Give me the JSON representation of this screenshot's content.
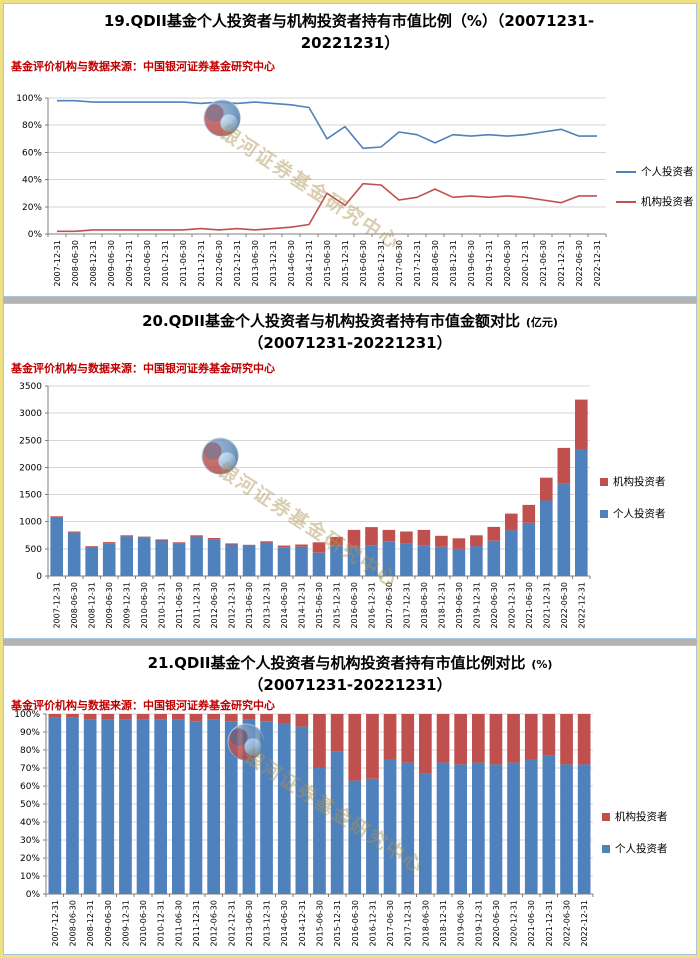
{
  "page": {
    "watermark": "银河证券基金研究中心",
    "source_note": "基金评价机构与数据来源：中国银河证券基金研究中心"
  },
  "colors": {
    "individual": "#4f81bd",
    "institutional": "#c0504d",
    "source_red": "#c00000"
  },
  "chart_data": [
    {
      "id": "chart19",
      "type": "line",
      "title_main": "19.QDII基金个人投资者与机构投资者持有市值比例（%）（20071231-",
      "title_unit": "",
      "title_line2": "20221231）",
      "ylim": [
        0,
        100
      ],
      "ytick_step": 20,
      "yformat": "percent",
      "grid": true,
      "legend_position": "right",
      "legend_order": [
        0,
        1
      ],
      "categories": [
        "2007-12-31",
        "2008-06-30",
        "2008-12-31",
        "2009-06-30",
        "2009-12-31",
        "2010-06-30",
        "2010-12-31",
        "2011-06-30",
        "2011-12-31",
        "2012-06-30",
        "2012-12-31",
        "2013-06-30",
        "2013-12-31",
        "2014-06-30",
        "2014-12-31",
        "2015-06-30",
        "2015-12-31",
        "2016-06-30",
        "2016-12-31",
        "2017-06-30",
        "2017-12-31",
        "2018-06-30",
        "2018-12-31",
        "2019-06-30",
        "2019-12-31",
        "2020-06-30",
        "2020-12-31",
        "2021-06-30",
        "2021-12-31",
        "2022-06-30",
        "2022-12-31"
      ],
      "series": [
        {
          "name": "个人投资者",
          "color": "#4f81bd",
          "marker": "line",
          "values": [
            98,
            98,
            97,
            97,
            97,
            97,
            97,
            97,
            96,
            97,
            96,
            97,
            96,
            95,
            93,
            70,
            79,
            63,
            64,
            75,
            73,
            67,
            73,
            72,
            73,
            72,
            73,
            75,
            77,
            72,
            72
          ]
        },
        {
          "name": "机构投资者",
          "color": "#c0504d",
          "marker": "line",
          "values": [
            2,
            2,
            3,
            3,
            3,
            3,
            3,
            3,
            4,
            3,
            4,
            3,
            4,
            5,
            7,
            30,
            21,
            37,
            36,
            25,
            27,
            33,
            27,
            28,
            27,
            28,
            27,
            25,
            23,
            28,
            28
          ]
        }
      ]
    },
    {
      "id": "chart20",
      "type": "bar",
      "stacked": true,
      "title_main": "20.QDII基金个人投资者与机构投资者持有市值金额对比",
      "title_unit": " (亿元)",
      "title_line2": "（20071231-20221231）",
      "ylim": [
        0,
        3500
      ],
      "ytick_step": 500,
      "yformat": "number",
      "grid": true,
      "legend_position": "right",
      "legend_order": [
        1,
        0
      ],
      "categories": [
        "2007-12-31",
        "2008-06-30",
        "2008-12-31",
        "2009-06-30",
        "2009-12-31",
        "2010-06-30",
        "2010-12-31",
        "2011-06-30",
        "2011-12-31",
        "2012-06-30",
        "2012-12-31",
        "2013-06-30",
        "2013-12-31",
        "2014-06-30",
        "2014-12-31",
        "2015-06-30",
        "2015-12-31",
        "2016-06-30",
        "2016-12-31",
        "2017-06-30",
        "2017-12-31",
        "2018-06-30",
        "2018-12-31",
        "2019-06-30",
        "2019-12-31",
        "2020-06-30",
        "2020-12-31",
        "2021-06-30",
        "2021-12-31",
        "2022-06-30",
        "2022-12-31"
      ],
      "series": [
        {
          "name": "个人投资者",
          "color": "#4f81bd",
          "marker": "square",
          "values": [
            1075,
            800,
            535,
            605,
            730,
            705,
            655,
            600,
            725,
            680,
            580,
            555,
            615,
            530,
            540,
            430,
            570,
            540,
            570,
            640,
            600,
            570,
            540,
            500,
            550,
            650,
            840,
            980,
            1390,
            1700,
            2340
          ]
        },
        {
          "name": "机构投资者",
          "color": "#c0504d",
          "marker": "square",
          "values": [
            25,
            20,
            15,
            20,
            20,
            20,
            20,
            20,
            25,
            20,
            20,
            20,
            25,
            30,
            40,
            190,
            150,
            310,
            330,
            210,
            220,
            280,
            200,
            195,
            200,
            255,
            310,
            330,
            420,
            660,
            910
          ]
        }
      ]
    },
    {
      "id": "chart21",
      "type": "bar",
      "stacked": true,
      "title_main": "21.QDII基金个人投资者与机构投资者持有市值比例对比",
      "title_unit": " (%)",
      "title_line2": "（20071231-20221231）",
      "ylim": [
        0,
        100
      ],
      "ytick_step": 10,
      "yformat": "percent",
      "grid": true,
      "legend_position": "right",
      "legend_order": [
        1,
        0
      ],
      "categories": [
        "2007-12-31",
        "2008-06-30",
        "2008-12-31",
        "2009-06-30",
        "2009-12-31",
        "2010-06-30",
        "2010-12-31",
        "2011-06-30",
        "2011-12-31",
        "2012-06-30",
        "2012-12-31",
        "2013-06-30",
        "2013-12-31",
        "2014-06-30",
        "2014-12-31",
        "2015-06-30",
        "2015-12-31",
        "2016-06-30",
        "2016-12-31",
        "2017-06-30",
        "2017-12-31",
        "2018-06-30",
        "2018-12-31",
        "2019-06-30",
        "2019-12-31",
        "2020-06-30",
        "2020-12-31",
        "2021-06-30",
        "2021-12-31",
        "2022-06-30",
        "2022-12-31"
      ],
      "series": [
        {
          "name": "个人投资者",
          "color": "#4f81bd",
          "marker": "square",
          "values": [
            98,
            98,
            97,
            97,
            97,
            97,
            97,
            97,
            96,
            97,
            96,
            97,
            96,
            95,
            93,
            70,
            79,
            63,
            64,
            75,
            73,
            67,
            73,
            72,
            73,
            72,
            73,
            75,
            77,
            72,
            72
          ]
        },
        {
          "name": "机构投资者",
          "color": "#c0504d",
          "marker": "square",
          "values": [
            2,
            2,
            3,
            3,
            3,
            3,
            3,
            3,
            4,
            3,
            4,
            3,
            4,
            5,
            7,
            30,
            21,
            37,
            36,
            25,
            27,
            33,
            27,
            28,
            27,
            28,
            27,
            25,
            23,
            28,
            28
          ]
        }
      ]
    }
  ]
}
